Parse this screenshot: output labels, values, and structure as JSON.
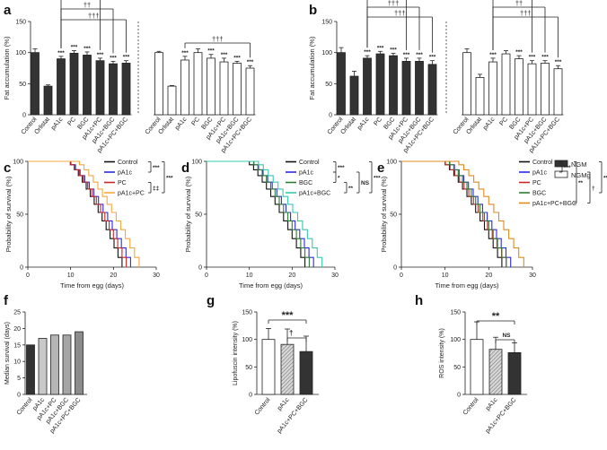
{
  "panels": {
    "a": {
      "label": "a",
      "ylabel": "Fat accumulation (%)",
      "ylim": [
        0,
        150
      ],
      "yticks": [
        0,
        50,
        100,
        150
      ],
      "type": "bar",
      "groups": [
        {
          "condition": "NGM",
          "categories": [
            "Control",
            "Orlistat",
            "pA1c",
            "PC",
            "BGC",
            "pA1c+PC",
            "pA1c+BGC",
            "pA1c+PC+BGC"
          ],
          "values": [
            100,
            46,
            90,
            99,
            96,
            87,
            82,
            83
          ],
          "errors": [
            6,
            2,
            4,
            4,
            5,
            4,
            4,
            4
          ],
          "stars": [
            "",
            "",
            "***",
            "***",
            "***",
            "***",
            "***",
            "***"
          ]
        },
        {
          "condition": "NGMg",
          "categories": [
            "Control",
            "Orlistat",
            "pA1c",
            "PC",
            "BGC",
            "pA1c+PC",
            "pA1c+BGC",
            "pA1c+PC+BGC"
          ],
          "values": [
            100,
            46,
            88,
            100,
            91,
            85,
            83,
            75
          ],
          "errors": [
            2,
            1,
            6,
            6,
            6,
            6,
            3,
            4
          ],
          "stars": [
            "",
            "",
            "***",
            "",
            "***",
            "***",
            "***",
            "***"
          ]
        }
      ],
      "brackets": [
        {
          "symbol": "†††",
          "group": 0,
          "from": 2,
          "to": 7
        },
        {
          "symbol": "††",
          "group": 0,
          "from": 2,
          "to": 6
        },
        {
          "symbol": "†",
          "group": 0,
          "from": 2,
          "to": 5
        },
        {
          "symbol": "†††",
          "group": 1,
          "from": 2,
          "to": 7
        }
      ]
    },
    "b": {
      "label": "b",
      "ylabel": "Fat accumulation (%)",
      "ylim": [
        0,
        150
      ],
      "yticks": [
        0,
        50,
        100,
        150
      ],
      "type": "bar",
      "groups": [
        {
          "condition": "NGM",
          "categories": [
            "Control",
            "Orlistat",
            "pA1c",
            "PC",
            "BGC",
            "pA1c+PC",
            "pA1c+BGC",
            "pA1c+PC+BGC"
          ],
          "values": [
            100,
            62,
            91,
            98,
            95,
            86,
            86,
            81
          ],
          "errors": [
            8,
            8,
            4,
            4,
            4,
            5,
            5,
            6
          ],
          "stars": [
            "",
            "",
            "***",
            "***",
            "***",
            "***",
            "***",
            "***"
          ]
        },
        {
          "condition": "NGMg",
          "categories": [
            "Control",
            "Orlistat",
            "pA1c",
            "PC",
            "BGC",
            "pA1c+PC",
            "pA1c+BGC",
            "pA1c+PC+BGC"
          ],
          "values": [
            100,
            60,
            85,
            98,
            90,
            82,
            83,
            74
          ],
          "errors": [
            6,
            5,
            6,
            5,
            5,
            5,
            4,
            5
          ],
          "stars": [
            "",
            "",
            "***",
            "",
            "***",
            "***",
            "***",
            "***"
          ]
        }
      ],
      "brackets": [
        {
          "symbol": "†††",
          "group": 0,
          "from": 2,
          "to": 7
        },
        {
          "symbol": "†††",
          "group": 0,
          "from": 2,
          "to": 6
        },
        {
          "symbol": "†††",
          "group": 0,
          "from": 2,
          "to": 5
        },
        {
          "symbol": "†††",
          "group": 1,
          "from": 2,
          "to": 7
        },
        {
          "symbol": "††",
          "group": 1,
          "from": 2,
          "to": 6
        },
        {
          "symbol": "†",
          "group": 1,
          "from": 2,
          "to": 5
        }
      ],
      "legend": [
        {
          "label": "NGM",
          "color": "#333333"
        },
        {
          "label": "NGMg",
          "color": "#ffffff"
        }
      ]
    },
    "c": {
      "label": "c",
      "type": "line",
      "xlabel": "Time from egg (days)",
      "ylabel": "Probability of survival (%)",
      "xlim": [
        0,
        30
      ],
      "ylim": [
        0,
        100
      ],
      "xticks": [
        0,
        10,
        20,
        30
      ],
      "yticks": [
        0,
        50,
        100
      ],
      "series": [
        {
          "name": "Control",
          "color": "#111111",
          "start": 9,
          "end": 22
        },
        {
          "name": "pA1c",
          "color": "#2b2be6",
          "start": 9,
          "end": 24
        },
        {
          "name": "PC",
          "color": "#c62828",
          "start": 9,
          "end": 23
        },
        {
          "name": "pA1c+PC",
          "color": "#f5a742",
          "start": 11,
          "end": 26
        }
      ],
      "annotations": [
        "***",
        "‡‡",
        "***"
      ]
    },
    "d": {
      "label": "d",
      "type": "line",
      "xlabel": "Time from egg (days)",
      "ylabel": "Probability of survival (%)",
      "xlim": [
        0,
        30
      ],
      "ylim": [
        0,
        100
      ],
      "xticks": [
        0,
        10,
        20,
        30
      ],
      "yticks": [
        0,
        50,
        100
      ],
      "series": [
        {
          "name": "Control",
          "color": "#111111",
          "start": 9,
          "end": 23
        },
        {
          "name": "pA1c",
          "color": "#2b2be6",
          "start": 10,
          "end": 25
        },
        {
          "name": "BGC",
          "color": "#2e7d32",
          "start": 10,
          "end": 24
        },
        {
          "name": "pA1c+BGC",
          "color": "#36c9b0",
          "start": 11,
          "end": 27
        }
      ],
      "annotations": [
        "***",
        "*",
        "**",
        "NS",
        "***"
      ]
    },
    "e": {
      "label": "e",
      "type": "line",
      "xlabel": "Time from egg (days)",
      "ylabel": "Probability of survival (%)",
      "xlim": [
        0,
        30
      ],
      "ylim": [
        0,
        100
      ],
      "xticks": [
        0,
        10,
        20,
        30
      ],
      "yticks": [
        0,
        50,
        100
      ],
      "series": [
        {
          "name": "Control",
          "color": "#111111",
          "start": 9,
          "end": 23
        },
        {
          "name": "pA1c",
          "color": "#2b2be6",
          "start": 10,
          "end": 25
        },
        {
          "name": "PC",
          "color": "#c62828",
          "start": 9,
          "end": 24
        },
        {
          "name": "BGC",
          "color": "#2e7d32",
          "start": 10,
          "end": 24
        },
        {
          "name": "pA1c+PC+BGC",
          "color": "#e08a1e",
          "start": 12,
          "end": 28
        }
      ],
      "annotations": [
        "***",
        "**",
        "†",
        "***"
      ]
    },
    "f": {
      "label": "f",
      "type": "bar",
      "ylabel": "Median survival (days)",
      "ylim": [
        0,
        25
      ],
      "yticks": [
        0,
        5,
        10,
        15,
        20,
        25
      ],
      "categories": [
        "Control",
        "pA1c",
        "pA1c+PC",
        "pA1c+BGC",
        "pA1c+PC+BGC"
      ],
      "values": [
        15,
        17,
        18,
        18,
        19
      ]
    },
    "g": {
      "label": "g",
      "type": "bar",
      "ylabel": "Lipofuscin intensity (%)",
      "ylim": [
        0,
        150
      ],
      "yticks": [
        0,
        50,
        100,
        150
      ],
      "categories": [
        "Control",
        "pA1c",
        "pA1c+PC+BGC"
      ],
      "values": [
        100,
        91,
        78
      ],
      "errors": [
        20,
        28,
        28
      ],
      "annotations": [
        "***",
        "†"
      ]
    },
    "h": {
      "label": "h",
      "type": "bar",
      "ylabel": "ROS intensity (%)",
      "ylim": [
        0,
        150
      ],
      "yticks": [
        0,
        50,
        100,
        150
      ],
      "categories": [
        "Control",
        "pA1c",
        "pA1c+PC+BGC"
      ],
      "values": [
        100,
        82,
        76
      ],
      "errors": [
        32,
        22,
        18
      ],
      "annotations": [
        "**",
        "NS"
      ]
    }
  }
}
